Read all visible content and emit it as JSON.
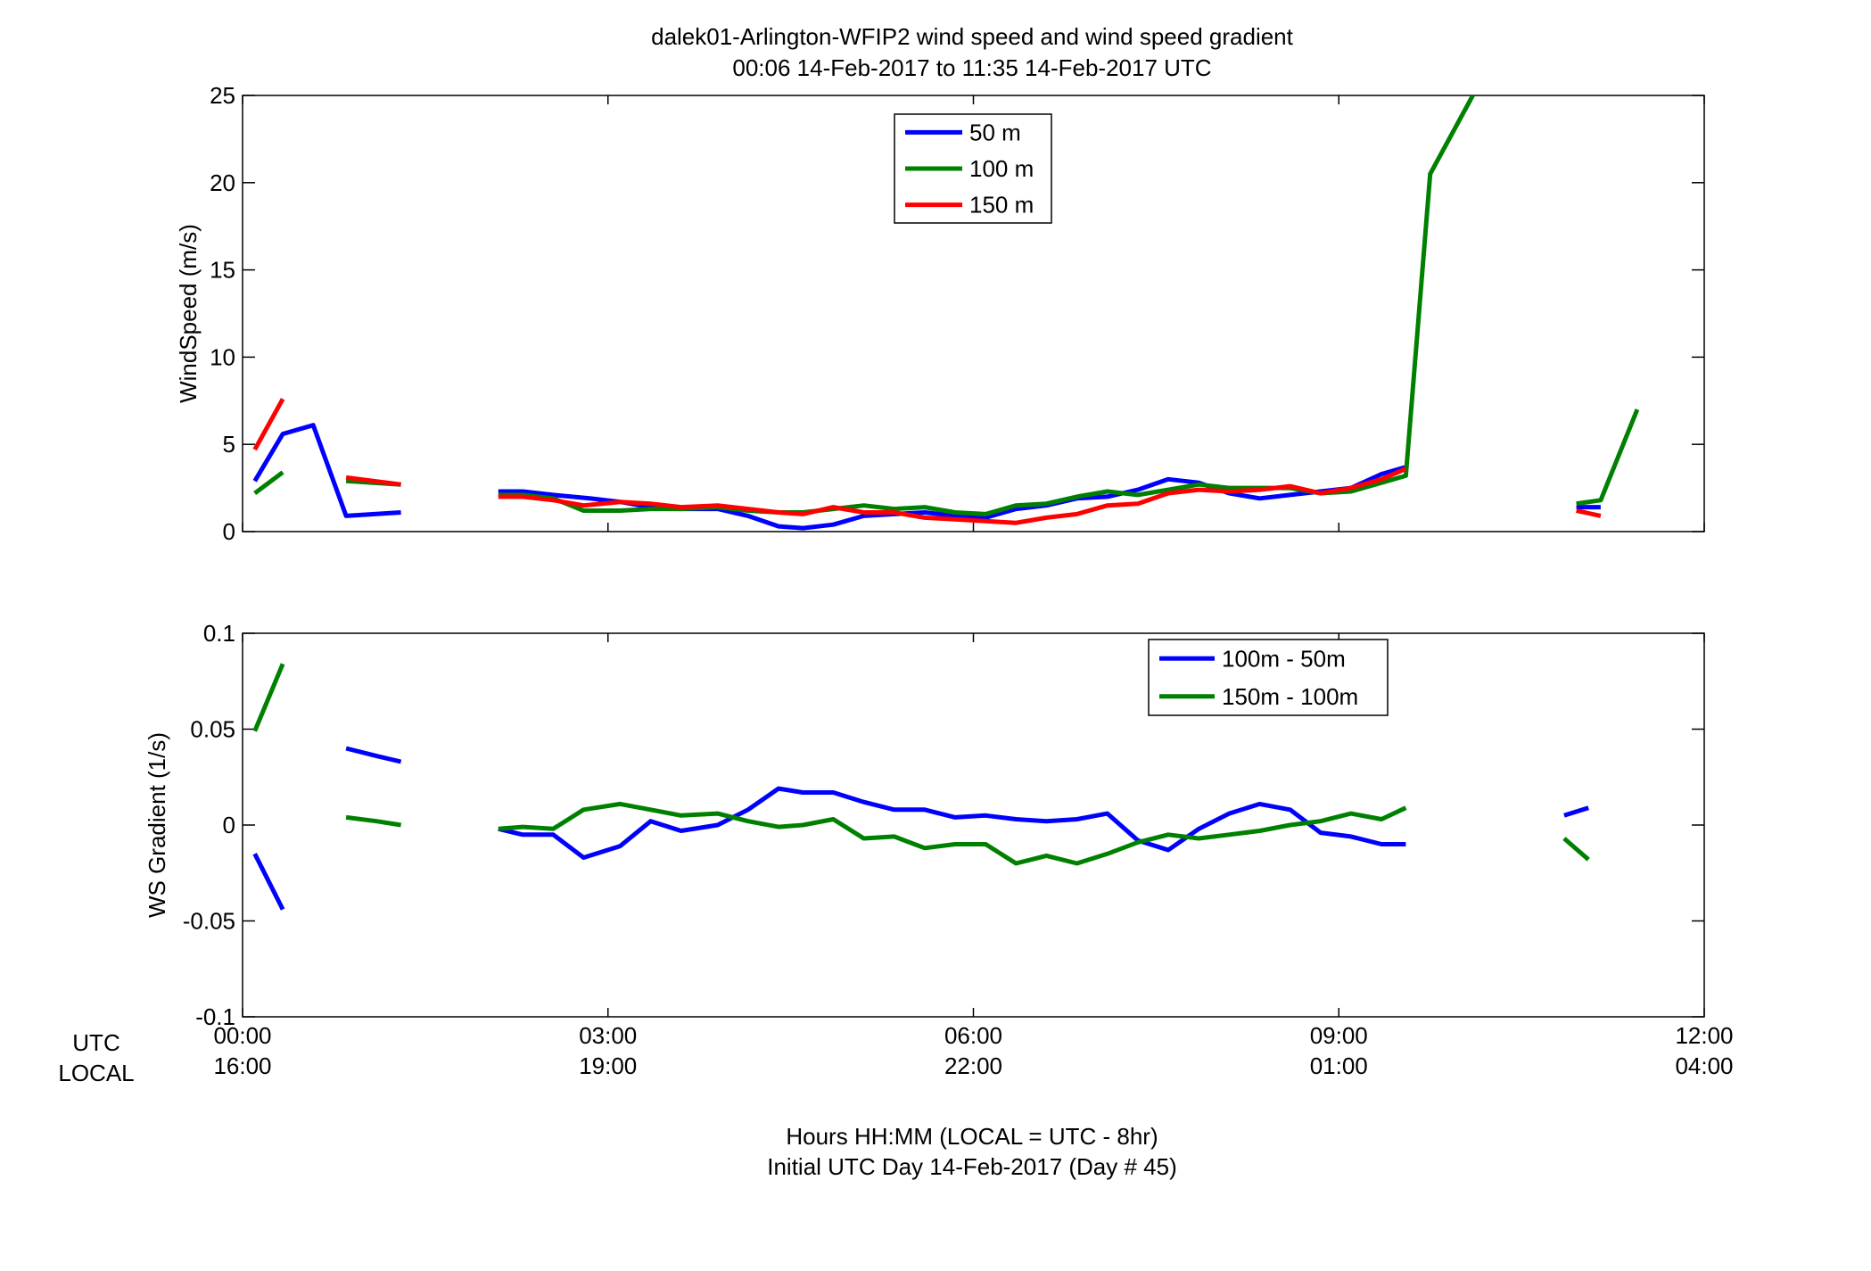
{
  "figure": {
    "title_line1": "dalek01-Arlington-WFIP2  wind speed and wind speed gradient",
    "title_line2": "00:06 14-Feb-2017 to 11:35 14-Feb-2017  UTC",
    "xaxis_row_label_utc": "UTC",
    "xaxis_row_label_local": "LOCAL",
    "xlabel_line1": "Hours HH:MM  (LOCAL = UTC - 8hr)",
    "xlabel_line2": "Initial UTC Day 14-Feb-2017 (Day # 45)",
    "xticks_utc": [
      "00:00",
      "03:00",
      "06:00",
      "09:00",
      "12:00"
    ],
    "xticks_local": [
      "16:00",
      "19:00",
      "22:00",
      "01:00",
      "04:00"
    ]
  },
  "chart_data": [
    {
      "type": "line",
      "ylabel": "WindSpeed (m/s)",
      "xlim": [
        0,
        12
      ],
      "ylim": [
        0,
        25
      ],
      "yticks": [
        "0",
        "5",
        "10",
        "15",
        "20",
        "25"
      ],
      "legend_position": "top-center",
      "series": [
        {
          "name": "50 m",
          "color": "#0000ff",
          "segments": [
            [
              [
                0.1,
                2.9
              ],
              [
                0.33,
                5.6
              ],
              [
                0.58,
                6.1
              ],
              [
                0.85,
                0.9
              ],
              [
                1.3,
                1.1
              ]
            ],
            [
              [
                2.1,
                2.3
              ],
              [
                2.3,
                2.3
              ],
              [
                2.55,
                2.1
              ],
              [
                2.85,
                1.9
              ],
              [
                3.1,
                1.7
              ],
              [
                3.35,
                1.4
              ],
              [
                3.6,
                1.3
              ],
              [
                3.9,
                1.3
              ],
              [
                4.15,
                0.9
              ],
              [
                4.4,
                0.3
              ],
              [
                4.6,
                0.2
              ],
              [
                4.85,
                0.4
              ],
              [
                5.1,
                0.9
              ],
              [
                5.35,
                1.0
              ],
              [
                5.6,
                1.1
              ],
              [
                5.85,
                0.9
              ],
              [
                6.1,
                0.8
              ],
              [
                6.35,
                1.3
              ],
              [
                6.6,
                1.5
              ],
              [
                6.85,
                1.9
              ],
              [
                7.1,
                2.0
              ],
              [
                7.35,
                2.4
              ],
              [
                7.6,
                3.0
              ],
              [
                7.85,
                2.8
              ],
              [
                8.1,
                2.2
              ],
              [
                8.35,
                1.9
              ],
              [
                8.6,
                2.1
              ],
              [
                8.85,
                2.3
              ],
              [
                9.1,
                2.5
              ],
              [
                9.35,
                3.3
              ],
              [
                9.55,
                3.7
              ]
            ],
            [
              [
                10.95,
                1.4
              ],
              [
                11.15,
                1.4
              ]
            ]
          ]
        },
        {
          "name": "100 m",
          "color": "#008000",
          "segments": [
            [
              [
                0.1,
                2.2
              ],
              [
                0.33,
                3.4
              ]
            ],
            [
              [
                0.85,
                2.9
              ],
              [
                1.3,
                2.7
              ]
            ],
            [
              [
                2.1,
                2.1
              ],
              [
                2.3,
                2.1
              ],
              [
                2.55,
                1.9
              ],
              [
                2.8,
                1.2
              ],
              [
                3.1,
                1.2
              ],
              [
                3.35,
                1.3
              ],
              [
                3.6,
                1.3
              ],
              [
                3.9,
                1.4
              ],
              [
                4.15,
                1.2
              ],
              [
                4.4,
                1.1
              ],
              [
                4.6,
                1.1
              ],
              [
                4.85,
                1.3
              ],
              [
                5.1,
                1.5
              ],
              [
                5.35,
                1.3
              ],
              [
                5.6,
                1.4
              ],
              [
                5.85,
                1.1
              ],
              [
                6.1,
                1.0
              ],
              [
                6.35,
                1.5
              ],
              [
                6.6,
                1.6
              ],
              [
                6.85,
                2.0
              ],
              [
                7.1,
                2.3
              ],
              [
                7.35,
                2.1
              ],
              [
                7.6,
                2.4
              ],
              [
                7.85,
                2.7
              ],
              [
                8.1,
                2.5
              ],
              [
                8.35,
                2.5
              ],
              [
                8.6,
                2.5
              ],
              [
                8.85,
                2.2
              ],
              [
                9.1,
                2.3
              ],
              [
                9.35,
                2.8
              ],
              [
                9.55,
                3.2
              ],
              [
                9.75,
                20.5
              ],
              [
                10.1,
                25.0
              ]
            ],
            [
              [
                10.95,
                1.6
              ],
              [
                11.15,
                1.8
              ],
              [
                11.45,
                7.0
              ]
            ]
          ]
        },
        {
          "name": "150 m",
          "color": "#ff0000",
          "segments": [
            [
              [
                0.1,
                4.7
              ],
              [
                0.33,
                7.6
              ]
            ],
            [
              [
                0.85,
                3.1
              ],
              [
                1.3,
                2.7
              ]
            ],
            [
              [
                2.1,
                2.0
              ],
              [
                2.3,
                2.0
              ],
              [
                2.55,
                1.8
              ],
              [
                2.8,
                1.5
              ],
              [
                3.1,
                1.7
              ],
              [
                3.35,
                1.6
              ],
              [
                3.6,
                1.4
              ],
              [
                3.9,
                1.5
              ],
              [
                4.15,
                1.3
              ],
              [
                4.4,
                1.1
              ],
              [
                4.6,
                1.0
              ],
              [
                4.85,
                1.4
              ],
              [
                5.1,
                1.1
              ],
              [
                5.35,
                1.1
              ],
              [
                5.6,
                0.8
              ],
              [
                5.85,
                0.7
              ],
              [
                6.1,
                0.6
              ],
              [
                6.35,
                0.5
              ],
              [
                6.6,
                0.8
              ],
              [
                6.85,
                1.0
              ],
              [
                7.1,
                1.5
              ],
              [
                7.35,
                1.6
              ],
              [
                7.6,
                2.2
              ],
              [
                7.85,
                2.4
              ],
              [
                8.1,
                2.3
              ],
              [
                8.35,
                2.4
              ],
              [
                8.6,
                2.6
              ],
              [
                8.85,
                2.2
              ],
              [
                9.1,
                2.5
              ],
              [
                9.35,
                3.0
              ],
              [
                9.55,
                3.6
              ]
            ],
            [
              [
                10.95,
                1.2
              ],
              [
                11.15,
                0.9
              ]
            ]
          ]
        }
      ]
    },
    {
      "type": "line",
      "ylabel": "WS Gradient (1/s)",
      "xlim": [
        0,
        12
      ],
      "ylim": [
        -0.1,
        0.1
      ],
      "yticks": [
        "-0.1",
        "-0.05",
        "0",
        "0.05",
        "0.1"
      ],
      "legend_position": "top-right",
      "series": [
        {
          "name": "100m - 50m",
          "color": "#0000ff",
          "segments": [
            [
              [
                0.1,
                -0.015
              ],
              [
                0.33,
                -0.044
              ]
            ],
            [
              [
                0.85,
                0.04
              ],
              [
                1.1,
                0.036
              ],
              [
                1.3,
                0.033
              ]
            ],
            [
              [
                2.1,
                -0.002
              ],
              [
                2.3,
                -0.005
              ],
              [
                2.55,
                -0.005
              ],
              [
                2.8,
                -0.017
              ],
              [
                3.1,
                -0.011
              ],
              [
                3.35,
                0.002
              ],
              [
                3.6,
                -0.003
              ],
              [
                3.9,
                0.0
              ],
              [
                4.15,
                0.008
              ],
              [
                4.4,
                0.019
              ],
              [
                4.6,
                0.017
              ],
              [
                4.85,
                0.017
              ],
              [
                5.1,
                0.012
              ],
              [
                5.35,
                0.008
              ],
              [
                5.6,
                0.008
              ],
              [
                5.85,
                0.004
              ],
              [
                6.1,
                0.005
              ],
              [
                6.35,
                0.003
              ],
              [
                6.6,
                0.002
              ],
              [
                6.85,
                0.003
              ],
              [
                7.1,
                0.006
              ],
              [
                7.35,
                -0.008
              ],
              [
                7.6,
                -0.013
              ],
              [
                7.85,
                -0.002
              ],
              [
                8.1,
                0.006
              ],
              [
                8.35,
                0.011
              ],
              [
                8.6,
                0.008
              ],
              [
                8.85,
                -0.004
              ],
              [
                9.1,
                -0.006
              ],
              [
                9.35,
                -0.01
              ],
              [
                9.55,
                -0.01
              ]
            ],
            [
              [
                10.85,
                0.005
              ],
              [
                11.05,
                0.009
              ]
            ]
          ]
        },
        {
          "name": "150m - 100m",
          "color": "#008000",
          "segments": [
            [
              [
                0.1,
                0.049
              ],
              [
                0.33,
                0.084
              ]
            ],
            [
              [
                0.85,
                0.004
              ],
              [
                1.1,
                0.002
              ],
              [
                1.3,
                0.0
              ]
            ],
            [
              [
                2.1,
                -0.002
              ],
              [
                2.3,
                -0.001
              ],
              [
                2.55,
                -0.002
              ],
              [
                2.8,
                0.008
              ],
              [
                3.1,
                0.011
              ],
              [
                3.35,
                0.008
              ],
              [
                3.6,
                0.005
              ],
              [
                3.9,
                0.006
              ],
              [
                4.15,
                0.002
              ],
              [
                4.4,
                -0.001
              ],
              [
                4.6,
                0.0
              ],
              [
                4.85,
                0.003
              ],
              [
                5.1,
                -0.007
              ],
              [
                5.35,
                -0.006
              ],
              [
                5.6,
                -0.012
              ],
              [
                5.85,
                -0.01
              ],
              [
                6.1,
                -0.01
              ],
              [
                6.35,
                -0.02
              ],
              [
                6.6,
                -0.016
              ],
              [
                6.85,
                -0.02
              ],
              [
                7.1,
                -0.015
              ],
              [
                7.35,
                -0.009
              ],
              [
                7.6,
                -0.005
              ],
              [
                7.85,
                -0.007
              ],
              [
                8.1,
                -0.005
              ],
              [
                8.35,
                -0.003
              ],
              [
                8.6,
                0.0
              ],
              [
                8.85,
                0.002
              ],
              [
                9.1,
                0.006
              ],
              [
                9.35,
                0.003
              ],
              [
                9.55,
                0.009
              ]
            ],
            [
              [
                10.85,
                -0.007
              ],
              [
                11.05,
                -0.018
              ]
            ]
          ]
        }
      ]
    }
  ]
}
